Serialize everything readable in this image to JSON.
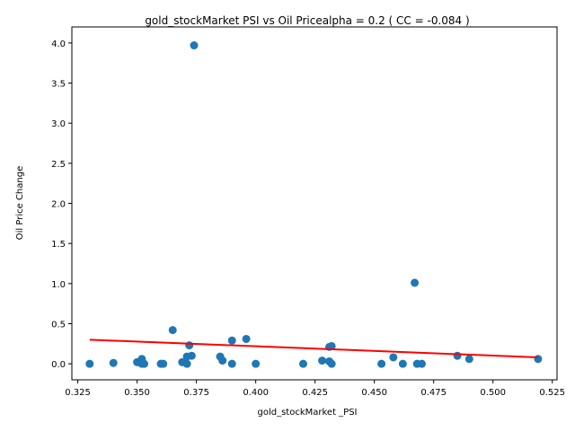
{
  "chart_data": {
    "type": "scatter",
    "title": "gold_stockMarket  PSI vs Oil Pricealpha = 0.2 ( CC = -0.084 )",
    "xlabel": "gold_stockMarket _PSI",
    "ylabel": "Oil Price Change",
    "xlim": [
      0.3225,
      0.527
    ],
    "ylim": [
      -0.2,
      4.2
    ],
    "xticks": [
      0.325,
      0.35,
      0.375,
      0.4,
      0.425,
      0.45,
      0.475,
      0.5,
      0.525
    ],
    "xtick_labels": [
      "0.325",
      "0.350",
      "0.375",
      "0.400",
      "0.425",
      "0.450",
      "0.475",
      "0.500",
      "0.525"
    ],
    "yticks": [
      0.0,
      0.5,
      1.0,
      1.5,
      2.0,
      2.5,
      3.0,
      3.5,
      4.0
    ],
    "ytick_labels": [
      "0.0",
      "0.5",
      "1.0",
      "1.5",
      "2.0",
      "2.5",
      "3.0",
      "3.5",
      "4.0"
    ],
    "grid": false,
    "point_color": "#1f77b4",
    "line_color": "#ff0000",
    "points": [
      {
        "x": 0.33,
        "y": 0.0
      },
      {
        "x": 0.34,
        "y": 0.01
      },
      {
        "x": 0.35,
        "y": 0.02
      },
      {
        "x": 0.352,
        "y": 0.06
      },
      {
        "x": 0.352,
        "y": 0.0
      },
      {
        "x": 0.353,
        "y": 0.0
      },
      {
        "x": 0.36,
        "y": 0.0
      },
      {
        "x": 0.361,
        "y": 0.0
      },
      {
        "x": 0.365,
        "y": 0.42
      },
      {
        "x": 0.369,
        "y": 0.02
      },
      {
        "x": 0.371,
        "y": 0.09
      },
      {
        "x": 0.371,
        "y": 0.0
      },
      {
        "x": 0.372,
        "y": 0.23
      },
      {
        "x": 0.373,
        "y": 0.1
      },
      {
        "x": 0.374,
        "y": 3.97
      },
      {
        "x": 0.385,
        "y": 0.09
      },
      {
        "x": 0.386,
        "y": 0.04
      },
      {
        "x": 0.39,
        "y": 0.29
      },
      {
        "x": 0.39,
        "y": 0.0
      },
      {
        "x": 0.396,
        "y": 0.31
      },
      {
        "x": 0.4,
        "y": 0.0
      },
      {
        "x": 0.42,
        "y": 0.0
      },
      {
        "x": 0.428,
        "y": 0.04
      },
      {
        "x": 0.431,
        "y": 0.03
      },
      {
        "x": 0.431,
        "y": 0.21
      },
      {
        "x": 0.432,
        "y": 0.22
      },
      {
        "x": 0.432,
        "y": 0.0
      },
      {
        "x": 0.453,
        "y": 0.0
      },
      {
        "x": 0.458,
        "y": 0.08
      },
      {
        "x": 0.462,
        "y": 0.0
      },
      {
        "x": 0.467,
        "y": 1.01
      },
      {
        "x": 0.468,
        "y": 0.0
      },
      {
        "x": 0.47,
        "y": 0.0
      },
      {
        "x": 0.485,
        "y": 0.1
      },
      {
        "x": 0.49,
        "y": 0.06
      },
      {
        "x": 0.519,
        "y": 0.06
      }
    ],
    "fit_line": {
      "x": [
        0.33,
        0.519
      ],
      "y": [
        0.3,
        0.08
      ]
    }
  }
}
